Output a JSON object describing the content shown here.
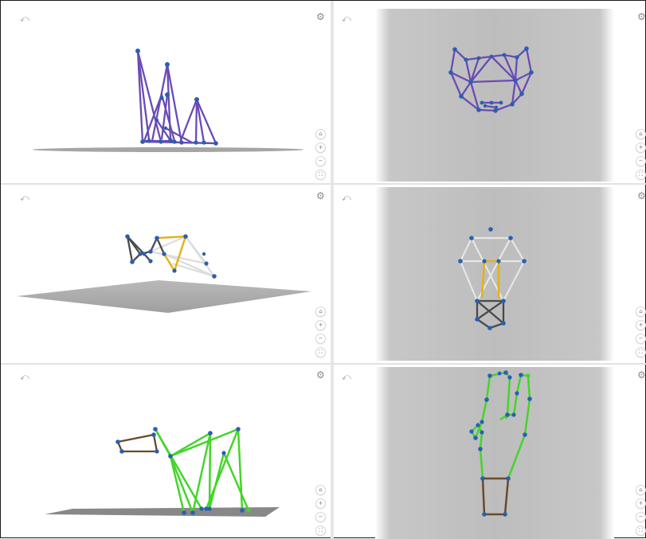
{
  "window": {
    "title": ""
  },
  "panels": [
    {
      "id": "p1",
      "undo": "⤺",
      "settings": "⚙",
      "controls": [
        "⌂",
        "+",
        "−",
        "⛶"
      ]
    },
    {
      "id": "p2",
      "undo": "⤺",
      "settings": "⚙",
      "controls": [
        "⌂",
        "+",
        "−",
        "⛶"
      ]
    },
    {
      "id": "p3",
      "undo": "⤺",
      "settings": "⚙",
      "controls": [
        "⌂",
        "+",
        "−",
        "⛶"
      ]
    },
    {
      "id": "p4",
      "undo": "⤺",
      "settings": "⚙",
      "controls": [
        "⌂",
        "+",
        "−",
        "⛶"
      ]
    },
    {
      "id": "p5",
      "undo": "⤺",
      "settings": "⚙",
      "controls": [
        "⌂",
        "+",
        "−",
        "⛶"
      ]
    },
    {
      "id": "p6",
      "undo": "⤺",
      "settings": "⚙",
      "controls": [
        "⌂",
        "+",
        "−",
        "⛶"
      ]
    }
  ],
  "colors": {
    "purple": "#6a4bb5",
    "node": "#2a5fb0",
    "yellow": "#e3b21a",
    "darkgray": "#4a4a4a",
    "lightgray": "#dcdcdc",
    "green": "#44d52a",
    "brown": "#6a4a2a"
  }
}
